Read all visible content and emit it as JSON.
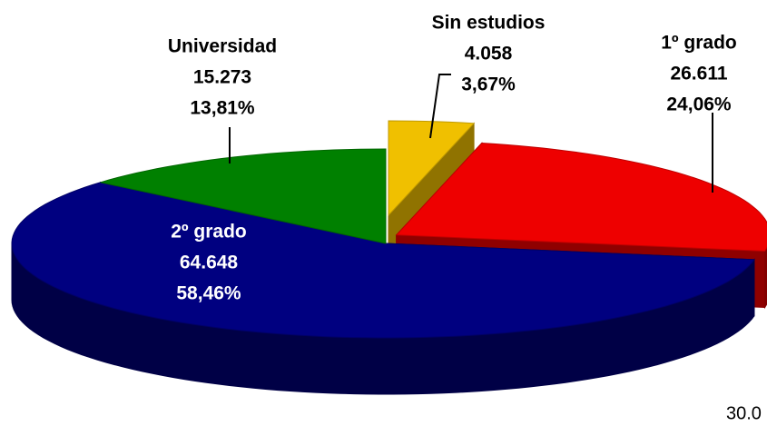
{
  "chart_data": {
    "type": "pie3d",
    "categories": [
      "Sin estudios",
      "1º grado",
      "2º grado",
      "Universidad"
    ],
    "values": [
      4058,
      26611,
      64648,
      15273
    ],
    "value_labels": [
      "4.058",
      "26.611",
      "64.648",
      "15.273"
    ],
    "percentages": [
      3.67,
      24.06,
      58.46,
      13.81
    ],
    "percentage_labels": [
      "3,67%",
      "24,06%",
      "58,46%",
      "13,81%"
    ],
    "colors": [
      "#f0c000",
      "#ee0000",
      "#000080",
      "#008000"
    ],
    "annotation": "30.0"
  }
}
